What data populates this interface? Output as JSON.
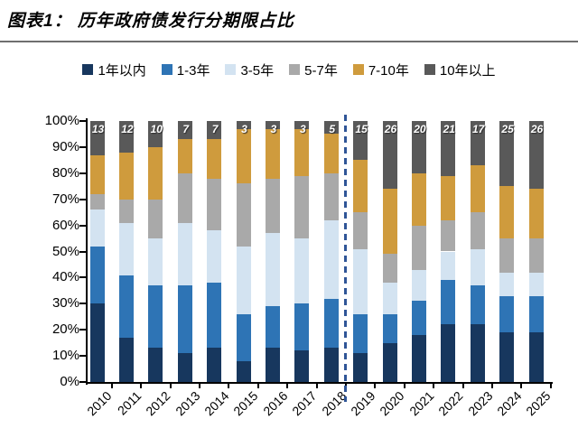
{
  "title": "图表1： 历年政府债发行分期限占比",
  "legend": [
    {
      "label": "1年以内",
      "color": "#17375E"
    },
    {
      "label": "1-3年",
      "color": "#2E74B5"
    },
    {
      "label": "3-5年",
      "color": "#D3E3F1"
    },
    {
      "label": "5-7年",
      "color": "#A9A9A9"
    },
    {
      "label": "7-10年",
      "color": "#CF9B3D"
    },
    {
      "label": "10年以上",
      "color": "#595959"
    }
  ],
  "chart_data": {
    "type": "bar",
    "stacked": true,
    "title": "历年政府债发行分期限占比",
    "xlabel": "",
    "ylabel": "",
    "ylim": [
      0,
      100
    ],
    "ytick_step": 10,
    "ytick_format": "percent",
    "grid": false,
    "legend_position": "top",
    "divider_after_category": "2018",
    "divider_color": "#2F5597",
    "categories": [
      "2010",
      "2011",
      "2012",
      "2013",
      "2014",
      "2015",
      "2016",
      "2017",
      "2018",
      "2019",
      "2020",
      "2021",
      "2022",
      "2023",
      "2024",
      "2025"
    ],
    "series": [
      {
        "name": "1年以内",
        "color": "#17375E",
        "values": [
          30,
          17,
          13,
          11,
          13,
          8,
          13,
          12,
          13,
          11,
          15,
          18,
          22,
          22,
          19,
          19
        ]
      },
      {
        "name": "1-3年",
        "color": "#2E74B5",
        "values": [
          22,
          24,
          24,
          26,
          25,
          18,
          16,
          18,
          19,
          15,
          11,
          13,
          17,
          15,
          14,
          14
        ]
      },
      {
        "name": "3-5年",
        "color": "#D3E3F1",
        "values": [
          14,
          20,
          18,
          24,
          20,
          26,
          28,
          25,
          30,
          25,
          12,
          12,
          11,
          14,
          9,
          9
        ]
      },
      {
        "name": "5-7年",
        "color": "#A9A9A9",
        "values": [
          6,
          9,
          15,
          19,
          20,
          24,
          21,
          24,
          18,
          14,
          11,
          17,
          12,
          14,
          13,
          13
        ]
      },
      {
        "name": "7-10年",
        "color": "#CF9B3D",
        "values": [
          15,
          18,
          20,
          13,
          15,
          21,
          19,
          18,
          15,
          20,
          25,
          20,
          17,
          18,
          20,
          19
        ]
      },
      {
        "name": "10年以上",
        "color": "#595959",
        "values": [
          13,
          12,
          10,
          7,
          7,
          3,
          3,
          3,
          5,
          15,
          26,
          20,
          21,
          17,
          25,
          26
        ],
        "data_labels": true
      }
    ],
    "data_labels_top": [
      "13",
      "12",
      "10",
      "7",
      "7",
      "3",
      "3",
      "3",
      "5",
      "15",
      "26",
      "20",
      "21",
      "17",
      "25",
      "26"
    ]
  }
}
